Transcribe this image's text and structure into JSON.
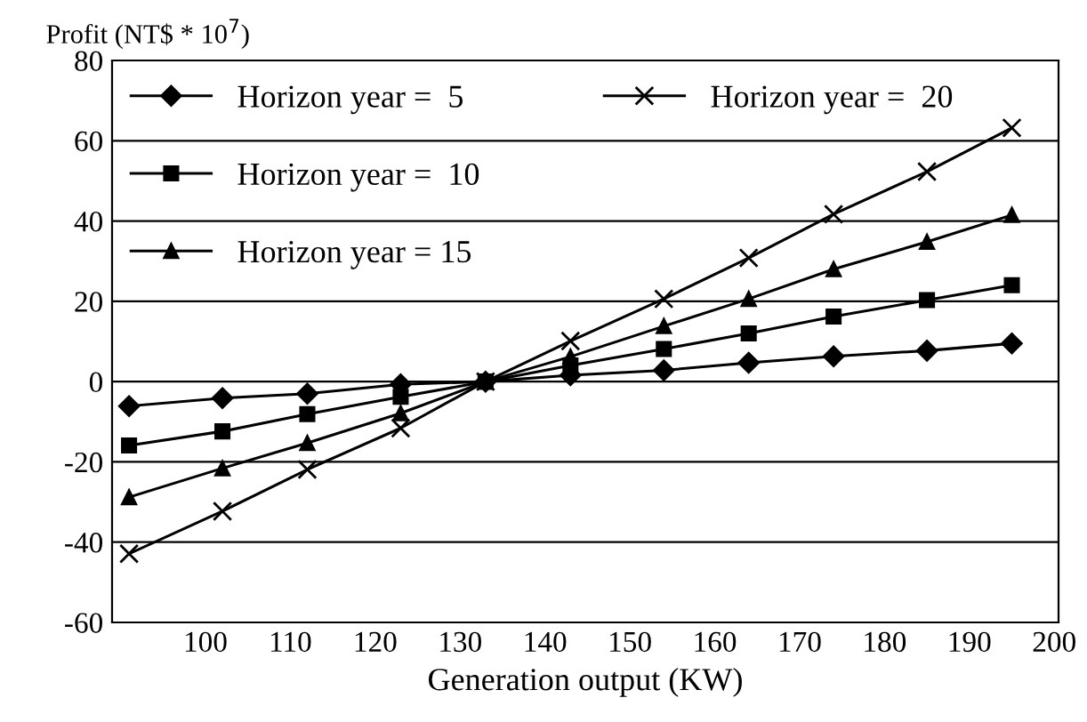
{
  "chart_data": {
    "type": "line",
    "ylabel": "Profit (NT$ * 10$^{7}$)",
    "xlabel": "Generation output (KW)",
    "x": [
      91,
      102,
      112,
      123,
      133,
      143,
      154,
      164,
      174,
      185,
      195
    ],
    "series": [
      {
        "name": "Horizon year =  5",
        "color": "#000000",
        "marker": "diamond",
        "values": [
          -6.1,
          -4.1,
          -3.0,
          -0.7,
          0,
          1.6,
          2.8,
          4.7,
          6.3,
          7.7,
          9.5
        ]
      },
      {
        "name": "Horizon year =  10",
        "color": "#000000",
        "marker": "square",
        "values": [
          -15.9,
          -12.4,
          -8.1,
          -3.8,
          0,
          4,
          8.1,
          12.0,
          16.2,
          20.3,
          24.0
        ]
      },
      {
        "name": "Horizon year = 15",
        "color": "#000000",
        "marker": "triangle",
        "values": [
          -28.8,
          -21.6,
          -15.3,
          -7.9,
          0,
          6.2,
          13.8,
          20.6,
          28,
          34.8,
          41.5
        ]
      },
      {
        "name": "Horizon year =  20",
        "color": "#000000",
        "marker": "cross",
        "values": [
          -42.9,
          -32.3,
          -21.9,
          -11.6,
          0,
          10.1,
          20.6,
          30.8,
          41.7,
          52.3,
          63.2
        ]
      }
    ],
    "xlim": [
      89,
      200.5
    ],
    "xticks": [
      100,
      110,
      120,
      130,
      140,
      150,
      160,
      170,
      180,
      190,
      200
    ],
    "ylim": [
      -60,
      80
    ],
    "yticks": [
      -60,
      -40,
      -20,
      0,
      20,
      40,
      60,
      80
    ],
    "grid": "y",
    "legend": "top left",
    "line_style": "solid"
  }
}
